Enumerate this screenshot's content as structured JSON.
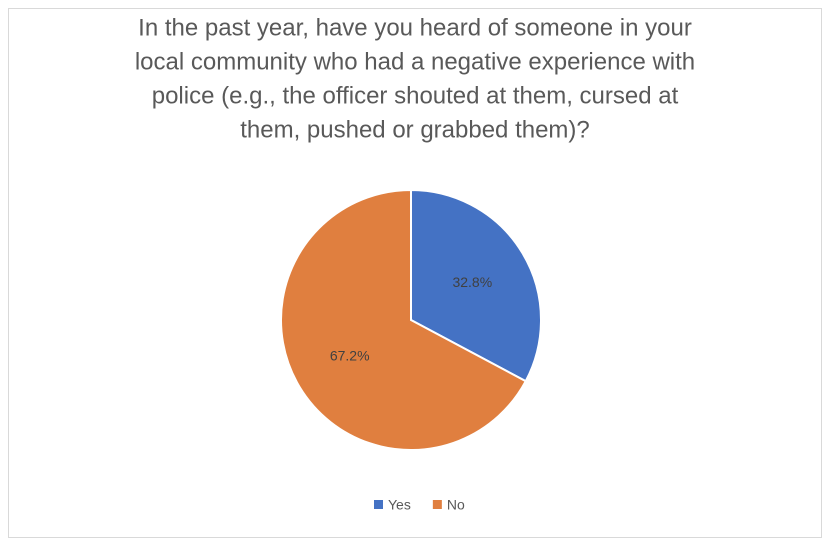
{
  "chart_data": {
    "type": "pie",
    "title": [
      "In the past year, have you heard of someone in your",
      "local community who had a negative experience with",
      "police (e.g., the officer shouted at them, cursed at",
      "them, pushed or  grabbed them)?"
    ],
    "categories": [
      "Yes",
      "No"
    ],
    "values": [
      32.8,
      67.2
    ],
    "value_labels": [
      "32.8%",
      "67.2%"
    ],
    "colors": [
      "#4472c4",
      "#e07f3f"
    ],
    "legend": "bottom"
  }
}
